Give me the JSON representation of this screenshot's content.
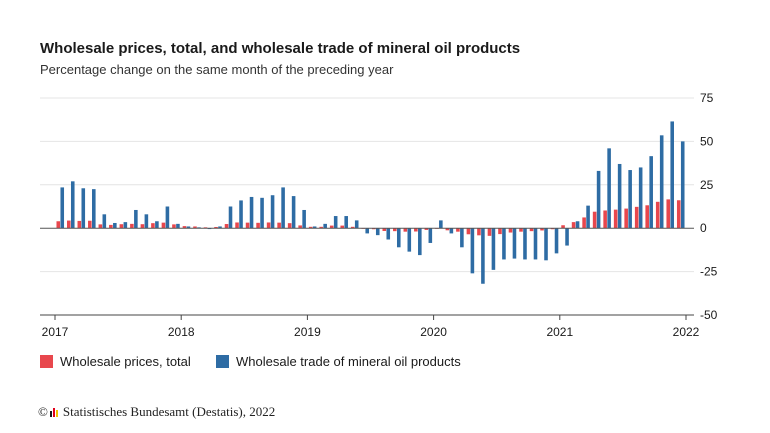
{
  "chart_data": {
    "type": "bar",
    "title": "Wholesale prices, total, and wholesale trade of mineral oil products",
    "subtitle": "Percentage change on the same month of the preceding year",
    "x_start": "2017-01",
    "x_end": "2021-12",
    "x_ticks": [
      "2017",
      "2018",
      "2019",
      "2020",
      "2021",
      "2022"
    ],
    "y_ticks": [
      "75",
      "50",
      "25",
      "0",
      "-25",
      "-50"
    ],
    "ylim": [
      -50,
      75
    ],
    "grid": true,
    "legend_position": "bottom-left",
    "series": [
      {
        "name": "Wholesale prices, total",
        "color": "#e8474d",
        "values": [
          4.0,
          4.4,
          4.2,
          4.3,
          2.2,
          1.9,
          2.3,
          2.5,
          2.3,
          2.9,
          3.2,
          2.2,
          1.2,
          1.0,
          0.5,
          0.7,
          2.4,
          3.3,
          3.2,
          3.1,
          3.3,
          3.2,
          2.9,
          1.6,
          0.8,
          0.8,
          1.5,
          1.5,
          0.8,
          -0.3,
          -0.6,
          -1.6,
          -1.7,
          -2.0,
          -1.9,
          -1.0,
          -0.1,
          -1.2,
          -2.0,
          -3.5,
          -4.1,
          -4.4,
          -3.4,
          -2.5,
          -2.0,
          -1.7,
          -1.3,
          -0.6,
          1.7,
          3.5,
          6.2,
          9.5,
          10.2,
          10.7,
          11.3,
          12.3,
          13.2,
          15.2,
          16.6,
          16.1
        ]
      },
      {
        "name": "Wholesale trade of mineral oil products",
        "color": "#2e6ca4",
        "values": [
          23.5,
          27.0,
          23.0,
          22.5,
          8.0,
          3.0,
          3.5,
          10.5,
          8.0,
          4.0,
          12.5,
          2.5,
          1.0,
          0.5,
          -0.5,
          1.0,
          12.5,
          16.0,
          18.0,
          17.5,
          19.0,
          23.5,
          18.5,
          10.5,
          1.0,
          2.5,
          7.0,
          7.0,
          4.5,
          -3.0,
          -4.0,
          -6.5,
          -11.0,
          -13.5,
          -15.5,
          -8.5,
          4.5,
          -3.0,
          -11.0,
          -26.0,
          -32.0,
          -24.0,
          -18.0,
          -17.5,
          -18.0,
          -18.0,
          -18.5,
          -14.5,
          -10.0,
          4.0,
          13.0,
          33.0,
          46.0,
          37.0,
          33.5,
          35.0,
          41.5,
          53.5,
          61.5,
          50.0
        ]
      }
    ]
  },
  "footer": {
    "copyright_symbol": "©",
    "text": "Statistisches Bundesamt (Destatis), 2022"
  },
  "colors": {
    "axis_text": "#1a1a1a",
    "gridline": "#e4e4e4",
    "zero_line": "#555555",
    "logo_bars": [
      "#1a1a1a",
      "#e2001a",
      "#f2c200"
    ]
  }
}
